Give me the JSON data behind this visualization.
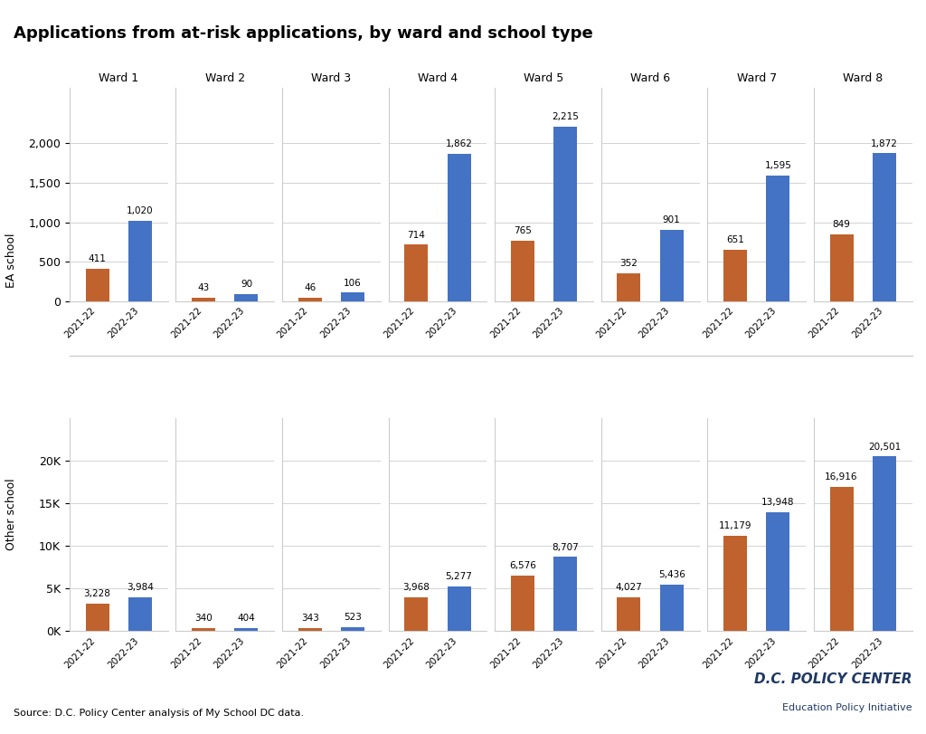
{
  "title": "Applications from at-risk applications, by ward and school type",
  "wards": [
    "Ward 1",
    "Ward 2",
    "Ward 3",
    "Ward 4",
    "Ward 5",
    "Ward 6",
    "Ward 7",
    "Ward 8"
  ],
  "years": [
    "2021-22",
    "2022-23"
  ],
  "ea_school": {
    "2021-22": [
      411,
      43,
      46,
      714,
      765,
      352,
      651,
      849
    ],
    "2022-23": [
      1020,
      90,
      106,
      1862,
      2215,
      901,
      1595,
      1872
    ]
  },
  "other_school": {
    "2021-22": [
      3228,
      340,
      343,
      3968,
      6576,
      4027,
      11179,
      16916
    ],
    "2022-23": [
      3984,
      404,
      523,
      5277,
      8707,
      5436,
      13948,
      20501
    ]
  },
  "color_2021": "#C0622D",
  "color_2022": "#4472C4",
  "ylabel_top": "EA school",
  "ylabel_bottom": "Other school",
  "source_text": "Source: D.C. Policy Center analysis of My School DC data.",
  "watermark_line1": "D.C. POLICY CENTER",
  "watermark_line2": "Education Policy Initiative",
  "background_color": "#FFFFFF",
  "grid_color": "#CCCCCC",
  "title_fontsize": 13,
  "label_fontsize": 7.5,
  "axis_fontsize": 9,
  "ward_label_fontsize": 9,
  "ea_yticks": [
    0,
    500,
    1000,
    1500,
    2000
  ],
  "other_yticks": [
    0,
    5000,
    10000,
    15000,
    20000
  ],
  "ea_ylim_max": 2700,
  "other_ylim_max": 25000
}
